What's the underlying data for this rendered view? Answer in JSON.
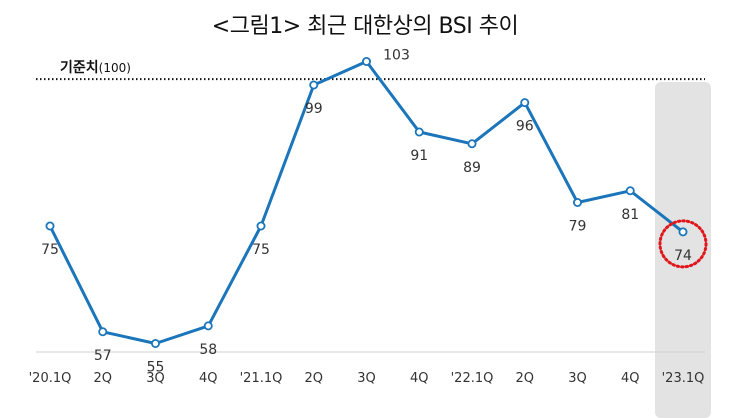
{
  "chart_data": {
    "type": "line",
    "title": "<그림1> 최근 대한상의 BSI 추이",
    "categories": [
      "'20.1Q",
      "2Q",
      "3Q",
      "4Q",
      "'21.1Q",
      "2Q",
      "3Q",
      "4Q",
      "'22.1Q",
      "2Q",
      "3Q",
      "4Q",
      "'23.1Q"
    ],
    "series": [
      {
        "values": [
          75,
          57,
          55,
          58,
          75,
          99,
          103,
          91,
          89,
          96,
          79,
          81,
          74
        ]
      }
    ],
    "reference_line": {
      "label": "기준치",
      "label_suffix": "(100)",
      "value": 100,
      "style": "dotted"
    },
    "highlighted_category": "'23.1Q",
    "highlighted_value": 74,
    "ylim": [
      50,
      105
    ],
    "grid": false,
    "colors": {
      "line": "#1a75bb",
      "reference": "#111111",
      "highlight_band": "#e3e3e3",
      "highlight_circle": "#e0161b",
      "text": "#333333"
    }
  }
}
